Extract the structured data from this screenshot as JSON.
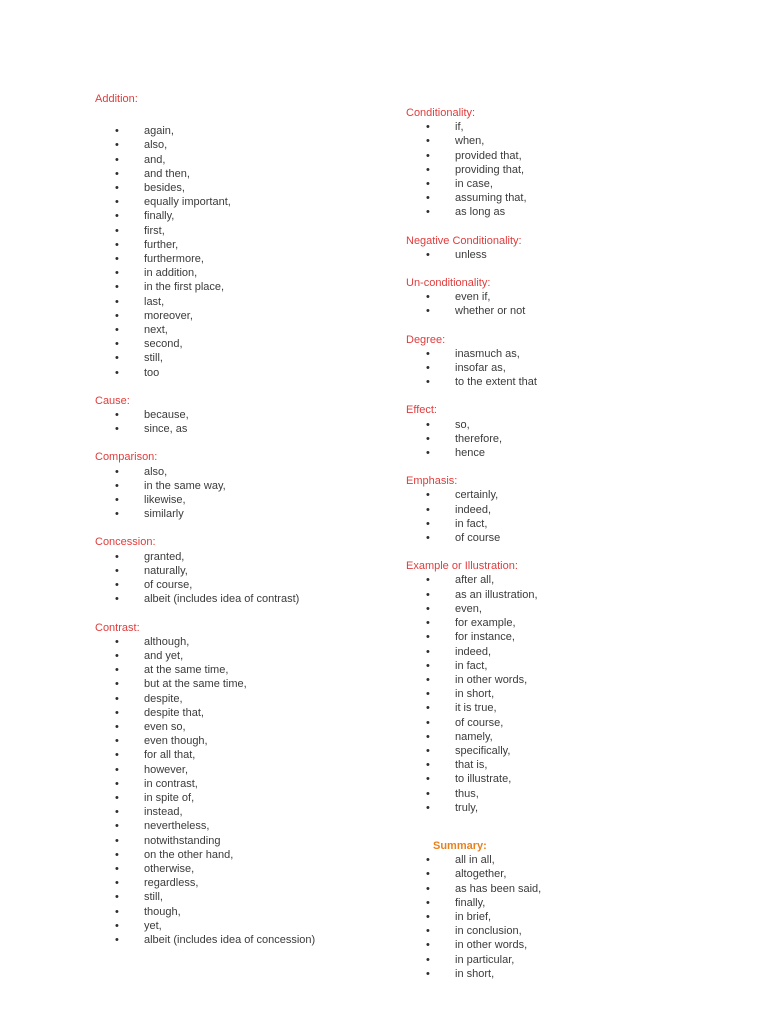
{
  "colors": {
    "page_background": "#ffffff",
    "heading_red": "#e03c3c",
    "heading_orange": "#e8821e",
    "body_text": "#3b3b3b"
  },
  "columns": {
    "left": {
      "sections": [
        {
          "heading": "Addition:",
          "style": "red",
          "gap_after_heading": true,
          "items": [
            "again,",
            "also,",
            "and,",
            "and then,",
            "besides,",
            "equally important,",
            "finally,",
            "first,",
            "further,",
            "furthermore,",
            "in addition,",
            "in the first place,",
            "last,",
            "moreover,",
            "next,",
            "second,",
            "still,",
            "too"
          ]
        },
        {
          "heading": "Cause:",
          "style": "red",
          "items": [
            "because,",
            "since, as"
          ]
        },
        {
          "heading": "Comparison:",
          "style": "red",
          "items": [
            "also,",
            "in the same way,",
            "likewise,",
            "similarly"
          ]
        },
        {
          "heading": "Concession:",
          "style": "red",
          "items": [
            "granted,",
            "naturally,",
            "of course,",
            "albeit (includes idea of contrast)"
          ]
        },
        {
          "heading": "Contrast:",
          "style": "red",
          "items": [
            "although,",
            "and yet,",
            "at the same time,",
            "but at the same time,",
            "despite,",
            "despite that,",
            "even so,",
            "even though,",
            "for all that,",
            "however,",
            "in contrast,",
            "in spite of,",
            "instead,",
            "nevertheless,",
            "notwithstanding",
            "on the other hand,",
            "otherwise,",
            "regardless,",
            "still,",
            "though,",
            "yet,",
            "albeit (includes idea of concession)"
          ]
        }
      ]
    },
    "right": {
      "sections": [
        {
          "heading": "Conditionality:",
          "style": "red",
          "items": [
            "if,",
            "when,",
            "provided that,",
            "providing that,",
            "in case,",
            "assuming that,",
            "as long as"
          ]
        },
        {
          "heading": "Negative Conditionality:",
          "style": "red",
          "items": [
            "unless"
          ]
        },
        {
          "heading": "Un-conditionality:",
          "style": "red",
          "items": [
            "even if,",
            "whether or not"
          ]
        },
        {
          "heading": "Degree:",
          "style": "red",
          "items": [
            "inasmuch as,",
            "insofar as,",
            "to the extent that"
          ]
        },
        {
          "heading": "Effect:",
          "style": "red",
          "items": [
            "so,",
            "therefore,",
            "hence"
          ]
        },
        {
          "heading": "Emphasis:",
          "style": "red",
          "items": [
            "certainly,",
            "indeed,",
            "in fact,",
            "of course"
          ]
        },
        {
          "heading": "Example or Illustration:",
          "style": "red",
          "items": [
            "after all,",
            "as an illustration,",
            "even,",
            "for example,",
            "for instance,",
            "indeed,",
            "in fact,",
            "in other words,",
            "in short,",
            "it is true,",
            "of course,",
            "namely,",
            "specifically,",
            "that is,",
            "to illustrate,",
            "thus,",
            "truly,"
          ]
        },
        {
          "heading": "Summary:",
          "style": "orange-bold",
          "extra_top_gap": true,
          "indent_heading": true,
          "items": [
            "all in all,",
            "altogether,",
            "as has been said,",
            "finally,",
            "in brief,",
            "in conclusion,",
            "in other words,",
            "in particular,",
            "in short,"
          ]
        }
      ]
    }
  }
}
